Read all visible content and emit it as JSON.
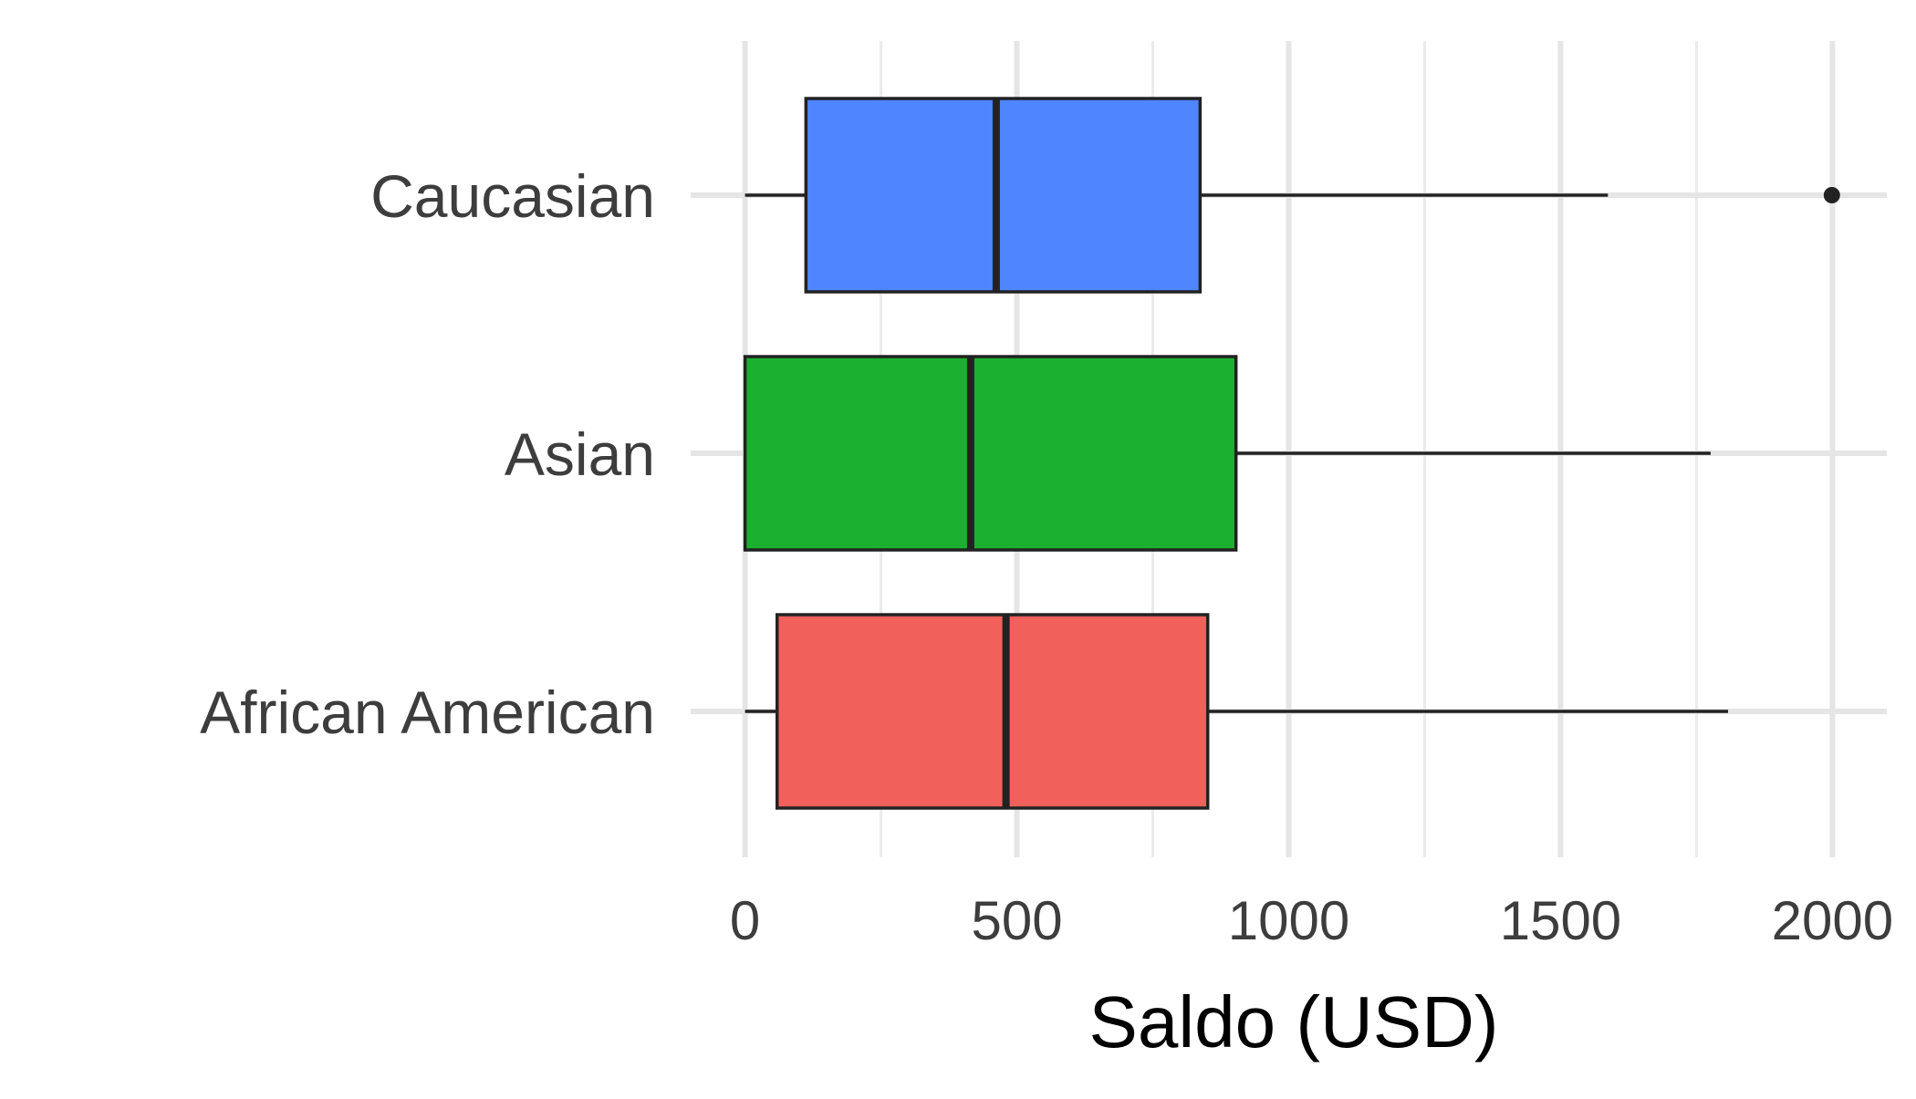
{
  "chart_data": {
    "type": "boxplot",
    "orientation": "horizontal",
    "title": "",
    "xlabel": "Saldo (USD)",
    "ylabel": "",
    "xlim": [
      -100,
      2100
    ],
    "x_ticks": [
      0,
      500,
      1000,
      1500,
      2000
    ],
    "x_tick_labels": [
      "0",
      "500",
      "1000",
      "1500",
      "2000"
    ],
    "categories": [
      "Caucasian",
      "Asian",
      "African American"
    ],
    "series": [
      {
        "category": "Caucasian",
        "color": "#4F86FF",
        "whisker_low": 0,
        "q1": 112,
        "median": 462,
        "q3": 837,
        "whisker_high": 1587,
        "outliers": [
          1999
        ]
      },
      {
        "category": "Asian",
        "color": "#1BB02F",
        "whisker_low": 0,
        "q1": 0,
        "median": 415,
        "q3": 903,
        "whisker_high": 1776,
        "outliers": []
      },
      {
        "category": "African American",
        "color": "#F2605C",
        "whisker_low": 0,
        "q1": 59,
        "median": 480,
        "q3": 851,
        "whisker_high": 1808,
        "outliers": []
      }
    ],
    "grid": true,
    "legend": "none"
  }
}
